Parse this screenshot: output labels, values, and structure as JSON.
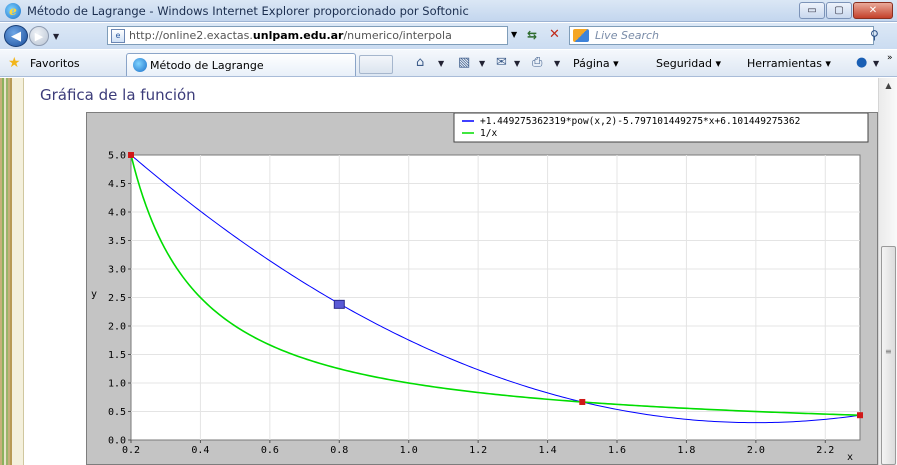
{
  "window": {
    "title": "Método de Lagrange - Windows Internet Explorer proporcionado por Softonic",
    "min_label": "▭",
    "max_label": "▢",
    "close_label": "✕"
  },
  "address": {
    "url_prefix": "http://online2.exactas.",
    "url_domain": "unlpam.edu.ar",
    "url_suffix": "/numerico/interpola",
    "search_placeholder": "Live Search"
  },
  "favbar": {
    "favorites_label": "Favoritos",
    "tab_label": "Método de Lagrange",
    "pagina_label": "Página",
    "seguridad_label": "Seguridad",
    "herramientas_label": "Herramientas"
  },
  "page": {
    "heading": "Gráfica de la función"
  },
  "chart_data": {
    "type": "line",
    "xlabel": "x",
    "ylabel": "y",
    "xlim": [
      0.2,
      2.3
    ],
    "ylim": [
      0.0,
      5.0
    ],
    "x_ticks": [
      "0.2",
      "0.4",
      "0.6",
      "0.8",
      "1.0",
      "1.2",
      "1.4",
      "1.6",
      "1.8",
      "2.0",
      "2.2"
    ],
    "y_ticks": [
      "0.0",
      "0.5",
      "1.0",
      "1.5",
      "2.0",
      "2.5",
      "3.0",
      "3.5",
      "4.0",
      "4.5",
      "5.0"
    ],
    "grid": true,
    "legend_placement": "top-right",
    "series": [
      {
        "name": "+1.449275362319*pow(x,2)-5.797101449275*x+6.101449275362",
        "color": "#0000ff",
        "coefficients": [
          1.449275362319,
          -5.797101449275,
          6.101449275362
        ]
      },
      {
        "name": "1/x",
        "color": "#00dd00"
      }
    ],
    "points": [
      {
        "x": 0.2,
        "y": 5.0
      },
      {
        "x": 1.5,
        "y": 0.667
      },
      {
        "x": 2.3,
        "y": 0.435
      }
    ],
    "highlight_point": {
      "x": 0.8,
      "y": 2.38
    }
  }
}
